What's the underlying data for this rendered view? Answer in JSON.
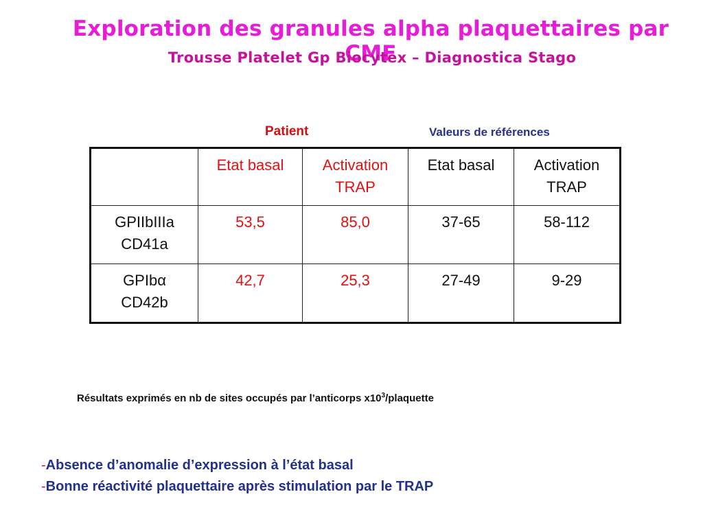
{
  "slide": {
    "title": "Exploration des granules alpha plaquettaires par CMF",
    "subtitle": "Trousse Platelet Gp Biocytex – Diagnostica Stago"
  },
  "groups": {
    "patient": "Patient",
    "reference": "Valeurs de références"
  },
  "table": {
    "headers": [
      "",
      "Etat basal",
      "Activation TRAP",
      "Etat basal",
      "Activation TRAP"
    ],
    "rows": [
      {
        "marker": "GPIIbIIIa",
        "cd": "CD41a",
        "values": [
          "53,5",
          "85,0",
          "37-65",
          "58-112"
        ]
      },
      {
        "marker": "GPIbα",
        "cd": "CD42b",
        "values": [
          "42,7",
          "25,3",
          "27-49",
          "9-29"
        ]
      }
    ]
  },
  "note": {
    "text": "Résultats exprimés en nb de sites occupés par l’anticorps x10",
    "exponent": "3",
    "suffix": "/plaquette"
  },
  "conclusions": [
    {
      "dash": "-",
      "text": "Absence d’anomalie d’expression à l’état basal"
    },
    {
      "dash": "-",
      "text": "Bonne réactivité plaquettaire après stimulation par le TRAP"
    }
  ],
  "colors": {
    "title": "#e61cd6",
    "subtitle": "#c4129c",
    "patient": "#e21010",
    "reference": "#25328c",
    "conclusion": "#23308f"
  }
}
